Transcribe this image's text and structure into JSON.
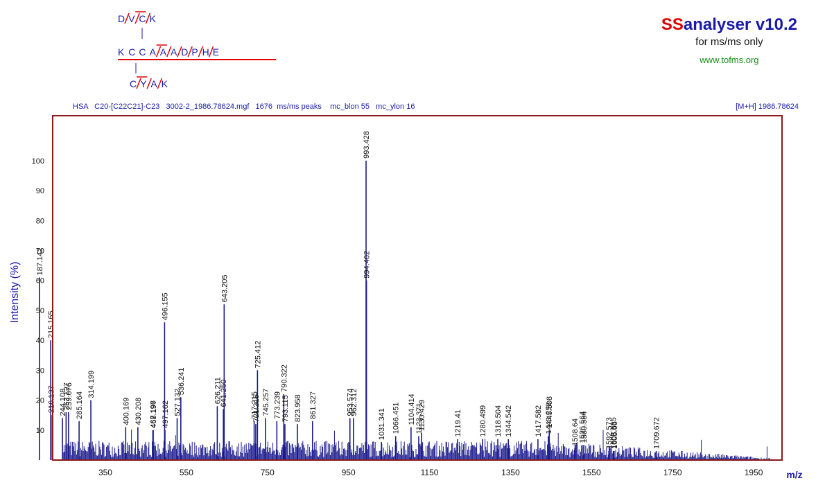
{
  "structure": {
    "chain_top": [
      "D",
      "V",
      "C",
      "K"
    ],
    "chain_main": [
      "K",
      "C",
      "C",
      "A",
      "A",
      "A",
      "D",
      "P",
      "H",
      "E"
    ],
    "chain_bottom": [
      "C",
      "Y",
      "A",
      "K"
    ]
  },
  "brand": {
    "title_prefix": "SS",
    "title_rest": "analyser v10.2",
    "subtitle": "for ms/ms only",
    "url": "www.tofms.org"
  },
  "info": {
    "line": "HSA   C20-[C22C21]-C23   3002-2_1986.78624.mgf   1676  ms/ms peaks    mc_blon 55   mc_ylon 16",
    "mh": "[M+H] 1986.78624"
  },
  "colors": {
    "frame": "#8b1a1a",
    "bars": "#1a1a8c",
    "text_blue": "#1a1aaa",
    "red": "#e00000",
    "green": "#1a8a1a"
  },
  "chart_data": {
    "type": "bar",
    "xlabel": "m/z",
    "ylabel": "Intensity (%)",
    "xlim": [
      220,
      2020
    ],
    "ylim": [
      0,
      115
    ],
    "xticks": [
      350,
      550,
      750,
      950,
      1150,
      1350,
      1550,
      1750,
      1950
    ],
    "yticks": [
      10,
      20,
      30,
      40,
      50,
      60,
      70,
      80,
      90,
      100
    ],
    "peaks": [
      {
        "mz": 187.142,
        "label": "187.142",
        "intensity": 61
      },
      {
        "mz": 215.165,
        "label": "215.165",
        "intensity": 40
      },
      {
        "mz": 216.137,
        "label": "216.137",
        "intensity": 15
      },
      {
        "mz": 244.108,
        "label": "244.108",
        "intensity": 14
      },
      {
        "mz": 253.127,
        "label": "253.127",
        "intensity": 16
      },
      {
        "mz": 259.076,
        "label": "259.076",
        "intensity": 16
      },
      {
        "mz": 285.164,
        "label": "285.164",
        "intensity": 13
      },
      {
        "mz": 314.199,
        "label": "314.199",
        "intensity": 20
      },
      {
        "mz": 400.169,
        "label": "400.169",
        "intensity": 11
      },
      {
        "mz": 430.208,
        "label": "430.208",
        "intensity": 11
      },
      {
        "mz": 467.196,
        "label": "467.196",
        "intensity": 10
      },
      {
        "mz": 468.197,
        "label": "468.197",
        "intensity": 10
      },
      {
        "mz": 496.155,
        "label": "496.155",
        "intensity": 46
      },
      {
        "mz": 497.162,
        "label": "497.162",
        "intensity": 10
      },
      {
        "mz": 527.132,
        "label": "527.132",
        "intensity": 14
      },
      {
        "mz": 536.241,
        "label": "536.241",
        "intensity": 21
      },
      {
        "mz": 626.211,
        "label": "626.211",
        "intensity": 18
      },
      {
        "mz": 641.25,
        "label": "641.250",
        "intensity": 17
      },
      {
        "mz": 643.205,
        "label": "643.205",
        "intensity": 52
      },
      {
        "mz": 717.215,
        "label": "717.215",
        "intensity": 13
      },
      {
        "mz": 721.215,
        "label": "721.215",
        "intensity": 12
      },
      {
        "mz": 725.412,
        "label": "725.412",
        "intensity": 30
      },
      {
        "mz": 745.257,
        "label": "745.257",
        "intensity": 14
      },
      {
        "mz": 773.239,
        "label": "773.239",
        "intensity": 13
      },
      {
        "mz": 790.322,
        "label": "790.322",
        "intensity": 22
      },
      {
        "mz": 793.115,
        "label": "793.115",
        "intensity": 12
      },
      {
        "mz": 823.958,
        "label": "823.958",
        "intensity": 12
      },
      {
        "mz": 861.327,
        "label": "861.327",
        "intensity": 13
      },
      {
        "mz": 953.574,
        "label": "953.574",
        "intensity": 14
      },
      {
        "mz": 962.312,
        "label": "962.312",
        "intensity": 14
      },
      {
        "mz": 993.428,
        "label": "993.428",
        "intensity": 100
      },
      {
        "mz": 994.402,
        "label": "994.402",
        "intensity": 60
      },
      {
        "mz": 1031.341,
        "label": "1031.341",
        "intensity": 6
      },
      {
        "mz": 1066.451,
        "label": "1066.451",
        "intensity": 8
      },
      {
        "mz": 1104.414,
        "label": "1104.414",
        "intensity": 11
      },
      {
        "mz": 1123.371,
        "label": "1123.371",
        "intensity": 8
      },
      {
        "mz": 1130.429,
        "label": "1130.429",
        "intensity": 9
      },
      {
        "mz": 1219.41,
        "label": "1219.41",
        "intensity": 7
      },
      {
        "mz": 1280.499,
        "label": "1280.499",
        "intensity": 7
      },
      {
        "mz": 1318.504,
        "label": "1318.504",
        "intensity": 7
      },
      {
        "mz": 1344.542,
        "label": "1344.542",
        "intensity": 7
      },
      {
        "mz": 1417.582,
        "label": "1417.582",
        "intensity": 7
      },
      {
        "mz": 1443.258,
        "label": "1443.258",
        "intensity": 8
      },
      {
        "mz": 1445.508,
        "label": "1445.508",
        "intensity": 10
      },
      {
        "mz": 1508.64,
        "label": "1508.64",
        "intensity": 4
      },
      {
        "mz": 1526.564,
        "label": "1526.564",
        "intensity": 5
      },
      {
        "mz": 1530.584,
        "label": "1530.584",
        "intensity": 5
      },
      {
        "mz": 1592.573,
        "label": "1592.573",
        "intensity": 3
      },
      {
        "mz": 1603.655,
        "label": "1603.655",
        "intensity": 3
      },
      {
        "mz": 1605.66,
        "label": "1605.66",
        "intensity": 3
      },
      {
        "mz": 1709.672,
        "label": "1709.672",
        "intensity": 3
      }
    ]
  }
}
